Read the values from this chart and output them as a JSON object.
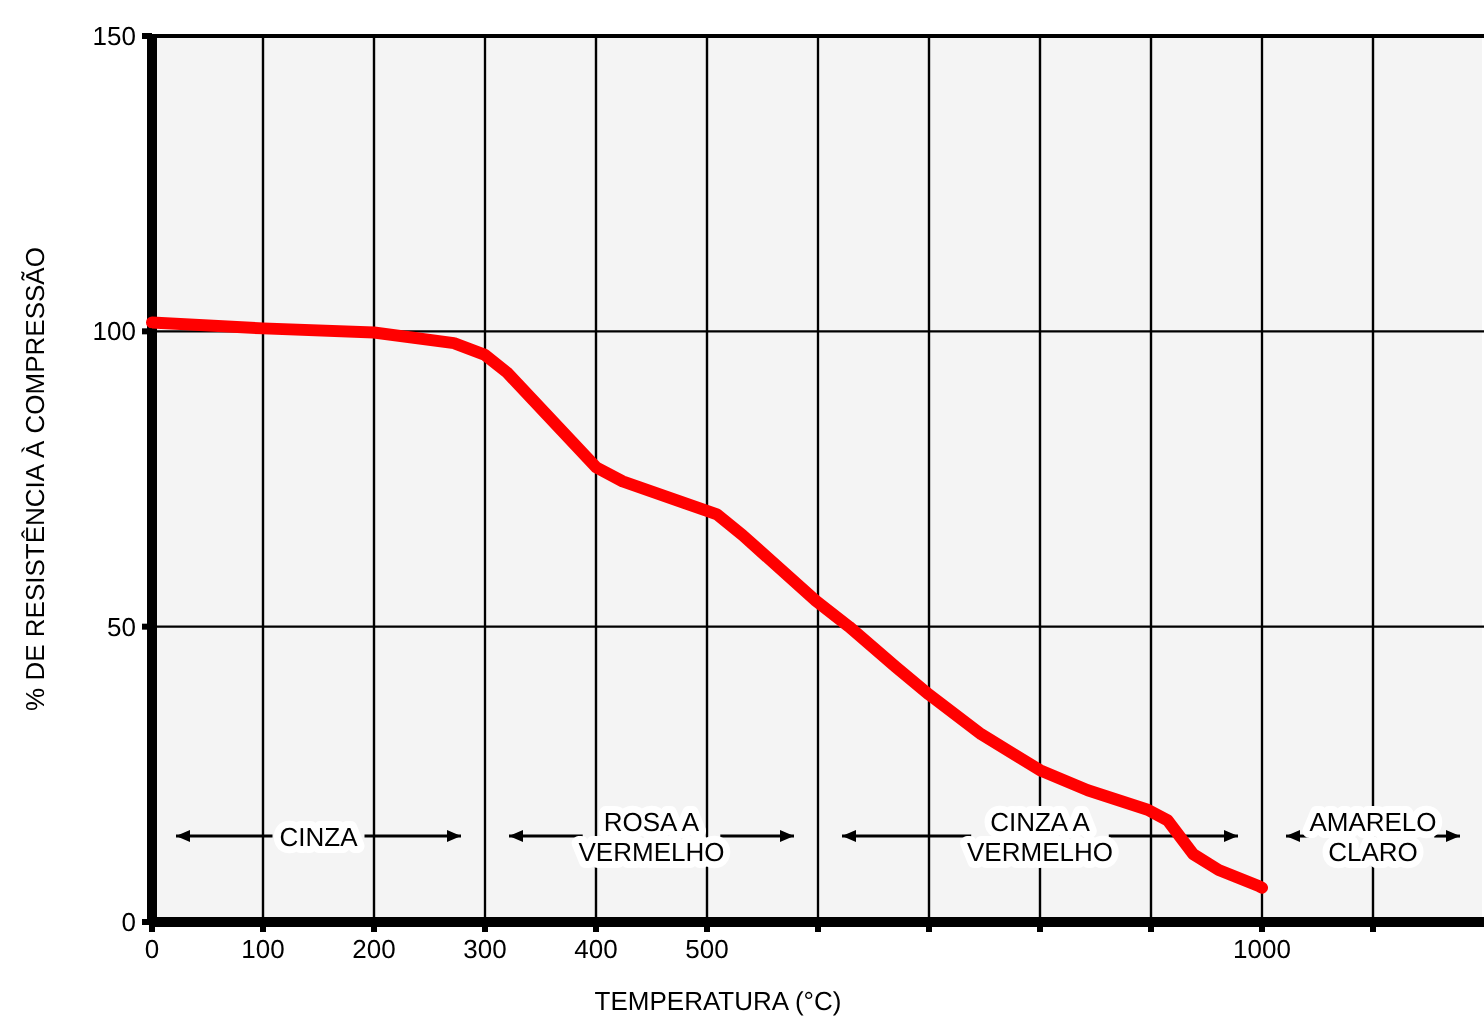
{
  "chart_data": {
    "type": "line",
    "xlabel": "TEMPERATURA (°C)",
    "ylabel": "% DE RESISTÊNCIA À COMPRESSÃO",
    "x": [
      0,
      100,
      200,
      272,
      300,
      320,
      400,
      424,
      500,
      509,
      532,
      598,
      628,
      670,
      700,
      747,
      800,
      843,
      897,
      915,
      938,
      961,
      997,
      1000
    ],
    "series": [
      {
        "color": "#ff0000",
        "values": [
          101.5,
          100.5,
          99.8,
          98,
          96,
          93,
          77,
          74.6,
          69.6,
          69,
          65.5,
          54.4,
          50,
          43.2,
          38.5,
          31.8,
          25.7,
          22.3,
          19,
          17.2,
          11.5,
          8.8,
          6.1,
          5.8
        ]
      }
    ],
    "xlim": [
      0,
      1200
    ],
    "ylim": [
      0,
      150
    ],
    "xticks": [
      0,
      100,
      200,
      300,
      400,
      500,
      {
        "value": 600,
        "label": null
      },
      {
        "value": 700,
        "label": null
      },
      {
        "value": 800,
        "label": null
      },
      {
        "value": 900,
        "label": null
      },
      1000,
      {
        "value": 1100,
        "label": null
      }
    ],
    "yticks": [
      0,
      50,
      100,
      150
    ],
    "grid": true,
    "marker": "none",
    "line_style": "solid",
    "bands": [
      {
        "axis": "x",
        "from": 0,
        "to": 300,
        "label": "CINZA",
        "color": "#f4f4f4"
      },
      {
        "axis": "x",
        "from": 300,
        "to": 600,
        "label": "ROSA A\nVERMELHO",
        "color": "#f4f4f4"
      },
      {
        "axis": "x",
        "from": 600,
        "to": 1000,
        "label": "CINZA A\nVERMELHO",
        "color": "#f4f4f4"
      },
      {
        "axis": "x",
        "from": 1000,
        "to": 1200,
        "label": "AMARELO\nCLARO",
        "color": "#f4f4f4"
      }
    ]
  }
}
